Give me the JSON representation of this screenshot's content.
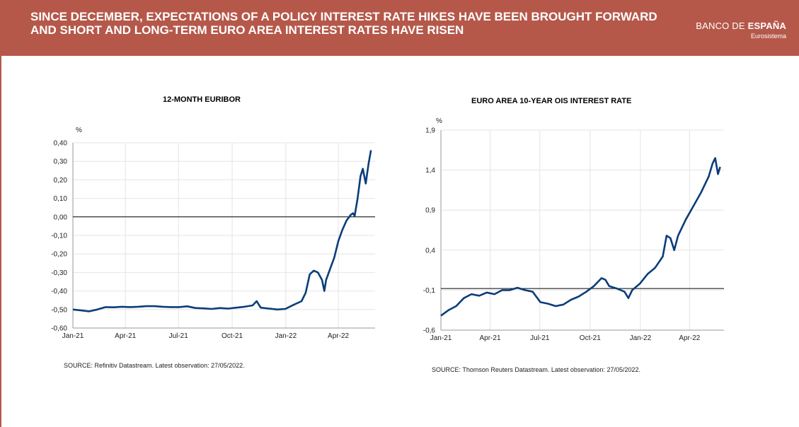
{
  "header": {
    "title": "SINCE DECEMBER, EXPECTATIONS OF A POLICY INTEREST RATE HIKES HAVE BEEN BROUGHT FORWARD AND SHORT AND LONG-TERM EURO AREA INTEREST RATES HAVE RISEN",
    "logo_part1": "BANCO DE ",
    "logo_part2": "ESPAÑA",
    "logo_sub": "Eurosistema",
    "color": "#b5584a"
  },
  "chart_data": [
    {
      "type": "line",
      "title": "12-MONTH EURIBOR",
      "ylabel": "%",
      "xlabel": "",
      "ylim": [
        -0.6,
        0.4
      ],
      "yticks": [
        "0,40",
        "0,30",
        "0,20",
        "0,10",
        "0,00",
        "-0,10",
        "-0,20",
        "-0,30",
        "-0,40",
        "-0,50",
        "-0,60"
      ],
      "yticks_values": [
        0.4,
        0.3,
        0.2,
        0.1,
        0.0,
        -0.1,
        -0.2,
        -0.3,
        -0.4,
        -0.5,
        -0.6
      ],
      "xticks": [
        "Jan-21",
        "Apr-21",
        "Jul-21",
        "Oct-21",
        "Jan-22",
        "Apr-22"
      ],
      "xticks_values": [
        "2021-01-01",
        "2021-04-01",
        "2021-07-01",
        "2021-10-01",
        "2022-01-01",
        "2022-04-01"
      ],
      "xlim": [
        "2021-01-01",
        "2022-06-03"
      ],
      "reference_line": 0.0,
      "grid": true,
      "series": [
        {
          "color": "#0a3d7a",
          "points": [
            [
              "2021-01-01",
              -0.5
            ],
            [
              "2021-01-15",
              -0.505
            ],
            [
              "2021-01-29",
              -0.51
            ],
            [
              "2021-02-12",
              -0.5
            ],
            [
              "2021-02-26",
              -0.487
            ],
            [
              "2021-03-12",
              -0.488
            ],
            [
              "2021-03-26",
              -0.485
            ],
            [
              "2021-04-09",
              -0.487
            ],
            [
              "2021-04-23",
              -0.485
            ],
            [
              "2021-05-07",
              -0.482
            ],
            [
              "2021-05-21",
              -0.482
            ],
            [
              "2021-06-04",
              -0.485
            ],
            [
              "2021-06-18",
              -0.487
            ],
            [
              "2021-07-02",
              -0.487
            ],
            [
              "2021-07-16",
              -0.483
            ],
            [
              "2021-07-30",
              -0.492
            ],
            [
              "2021-08-13",
              -0.494
            ],
            [
              "2021-08-27",
              -0.497
            ],
            [
              "2021-09-10",
              -0.492
            ],
            [
              "2021-09-24",
              -0.495
            ],
            [
              "2021-10-08",
              -0.49
            ],
            [
              "2021-10-22",
              -0.485
            ],
            [
              "2021-11-05",
              -0.478
            ],
            [
              "2021-11-12",
              -0.455
            ],
            [
              "2021-11-19",
              -0.49
            ],
            [
              "2021-12-03",
              -0.495
            ],
            [
              "2021-12-17",
              -0.5
            ],
            [
              "2021-12-31",
              -0.497
            ],
            [
              "2022-01-14",
              -0.475
            ],
            [
              "2022-01-28",
              -0.455
            ],
            [
              "2022-02-04",
              -0.41
            ],
            [
              "2022-02-11",
              -0.31
            ],
            [
              "2022-02-18",
              -0.29
            ],
            [
              "2022-02-25",
              -0.3
            ],
            [
              "2022-03-04",
              -0.34
            ],
            [
              "2022-03-08",
              -0.4
            ],
            [
              "2022-03-11",
              -0.34
            ],
            [
              "2022-03-18",
              -0.28
            ],
            [
              "2022-03-25",
              -0.22
            ],
            [
              "2022-04-01",
              -0.13
            ],
            [
              "2022-04-08",
              -0.07
            ],
            [
              "2022-04-15",
              -0.02
            ],
            [
              "2022-04-22",
              0.01
            ],
            [
              "2022-04-26",
              0.02
            ],
            [
              "2022-04-29",
              0.005
            ],
            [
              "2022-05-04",
              0.1
            ],
            [
              "2022-05-09",
              0.22
            ],
            [
              "2022-05-13",
              0.26
            ],
            [
              "2022-05-18",
              0.18
            ],
            [
              "2022-05-23",
              0.29
            ],
            [
              "2022-05-27",
              0.36
            ]
          ]
        }
      ]
    },
    {
      "type": "line",
      "title": "EURO AREA 10-YEAR OIS INTEREST RATE",
      "ylabel": "%",
      "xlabel": "",
      "ylim": [
        -0.6,
        1.9
      ],
      "yticks": [
        "1,9",
        "1,4",
        "0,9",
        "0,4",
        "-0,1",
        "-0,6"
      ],
      "yticks_values": [
        1.9,
        1.4,
        0.9,
        0.4,
        -0.1,
        -0.6
      ],
      "xticks": [
        "Jan-21",
        "Apr-21",
        "Jul-21",
        "Oct-21",
        "Jan-22",
        "Apr-22"
      ],
      "xticks_values": [
        "2021-01-01",
        "2021-04-01",
        "2021-07-01",
        "2021-10-01",
        "2022-01-01",
        "2022-04-01"
      ],
      "xlim": [
        "2021-01-01",
        "2022-06-03"
      ],
      "reference_line": -0.08,
      "grid": true,
      "series": [
        {
          "color": "#0a3d7a",
          "points": [
            [
              "2021-01-01",
              -0.42
            ],
            [
              "2021-01-15",
              -0.35
            ],
            [
              "2021-01-29",
              -0.3
            ],
            [
              "2021-02-12",
              -0.2
            ],
            [
              "2021-02-26",
              -0.15
            ],
            [
              "2021-03-12",
              -0.17
            ],
            [
              "2021-03-26",
              -0.13
            ],
            [
              "2021-04-09",
              -0.15
            ],
            [
              "2021-04-23",
              -0.1
            ],
            [
              "2021-05-07",
              -0.1
            ],
            [
              "2021-05-21",
              -0.07
            ],
            [
              "2021-06-04",
              -0.1
            ],
            [
              "2021-06-18",
              -0.12
            ],
            [
              "2021-07-02",
              -0.25
            ],
            [
              "2021-07-16",
              -0.27
            ],
            [
              "2021-07-30",
              -0.3
            ],
            [
              "2021-08-13",
              -0.28
            ],
            [
              "2021-08-27",
              -0.22
            ],
            [
              "2021-09-10",
              -0.18
            ],
            [
              "2021-09-24",
              -0.12
            ],
            [
              "2021-10-08",
              -0.05
            ],
            [
              "2021-10-22",
              0.05
            ],
            [
              "2021-10-29",
              0.03
            ],
            [
              "2021-11-05",
              -0.05
            ],
            [
              "2021-11-19",
              -0.08
            ],
            [
              "2021-12-03",
              -0.12
            ],
            [
              "2021-12-10",
              -0.2
            ],
            [
              "2021-12-17",
              -0.1
            ],
            [
              "2021-12-31",
              -0.02
            ],
            [
              "2022-01-14",
              0.1
            ],
            [
              "2022-01-28",
              0.18
            ],
            [
              "2022-02-11",
              0.32
            ],
            [
              "2022-02-18",
              0.58
            ],
            [
              "2022-02-25",
              0.55
            ],
            [
              "2022-03-04",
              0.4
            ],
            [
              "2022-03-11",
              0.58
            ],
            [
              "2022-03-25",
              0.78
            ],
            [
              "2022-04-08",
              0.95
            ],
            [
              "2022-04-22",
              1.12
            ],
            [
              "2022-05-06",
              1.32
            ],
            [
              "2022-05-13",
              1.48
            ],
            [
              "2022-05-18",
              1.55
            ],
            [
              "2022-05-23",
              1.35
            ],
            [
              "2022-05-27",
              1.44
            ]
          ]
        }
      ]
    }
  ],
  "sources": [
    "SOURCE: Refinitiv Datastream. Latest observation: 27/05/2022.",
    "SOURCE: Thomson Reuters Datastream. Latest observation: 27/05/2022."
  ]
}
